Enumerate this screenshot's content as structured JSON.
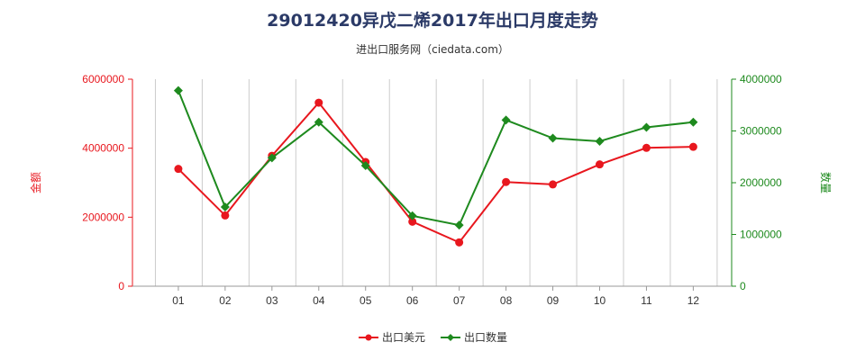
{
  "title": "29012420异戊二烯2017年出口月度走势",
  "subtitle": "进出口服务网（ciedata.com）",
  "colors": {
    "usd": "#e8171e",
    "qty": "#1e8a1e",
    "left_axis": "#e8171e",
    "right_axis": "#1e8a1e",
    "grid": "#cccccc"
  },
  "chart_data": {
    "type": "line",
    "categories": [
      "01",
      "02",
      "03",
      "04",
      "05",
      "06",
      "07",
      "08",
      "09",
      "10",
      "11",
      "12"
    ],
    "series": [
      {
        "name": "出口美元",
        "axis": "left",
        "marker": "circle",
        "values": [
          3400000,
          2050000,
          3780000,
          5320000,
          3600000,
          1870000,
          1270000,
          3020000,
          2950000,
          3530000,
          4010000,
          4040000
        ]
      },
      {
        "name": "出口数量",
        "axis": "right",
        "marker": "diamond",
        "values": [
          3780000,
          1530000,
          2480000,
          3170000,
          2330000,
          1360000,
          1180000,
          3210000,
          2860000,
          2800000,
          3070000,
          3170000
        ]
      }
    ],
    "y_left": {
      "label": "金额",
      "lim": [
        0,
        6000000
      ],
      "ticks": [
        "0",
        "2000000",
        "4000000",
        "6000000"
      ]
    },
    "y_right": {
      "label": "数量",
      "lim": [
        0,
        4000000
      ],
      "ticks": [
        "0",
        "1000000",
        "2000000",
        "3000000",
        "4000000"
      ]
    },
    "grid": "vertical",
    "legend_position": "bottom"
  }
}
